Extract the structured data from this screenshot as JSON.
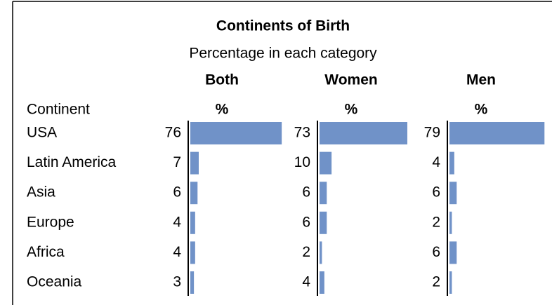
{
  "chart_data": {
    "type": "bar",
    "title": "Continents of Birth",
    "subtitle": "Percentage in each category",
    "category_header": "Continent",
    "value_header": "%",
    "categories": [
      "USA",
      "Latin America",
      "Asia",
      "Europe",
      "Africa",
      "Oceania"
    ],
    "series": [
      {
        "name": "Both",
        "color": "#7092c8",
        "values": [
          76,
          7,
          6,
          4,
          4,
          3
        ]
      },
      {
        "name": "Women",
        "color": "#7092c8",
        "values": [
          73,
          10,
          6,
          6,
          2,
          4
        ]
      },
      {
        "name": "Men",
        "color": "#7092c8",
        "values": [
          79,
          4,
          6,
          2,
          6,
          2
        ]
      }
    ],
    "xlim": [
      0,
      80
    ]
  }
}
